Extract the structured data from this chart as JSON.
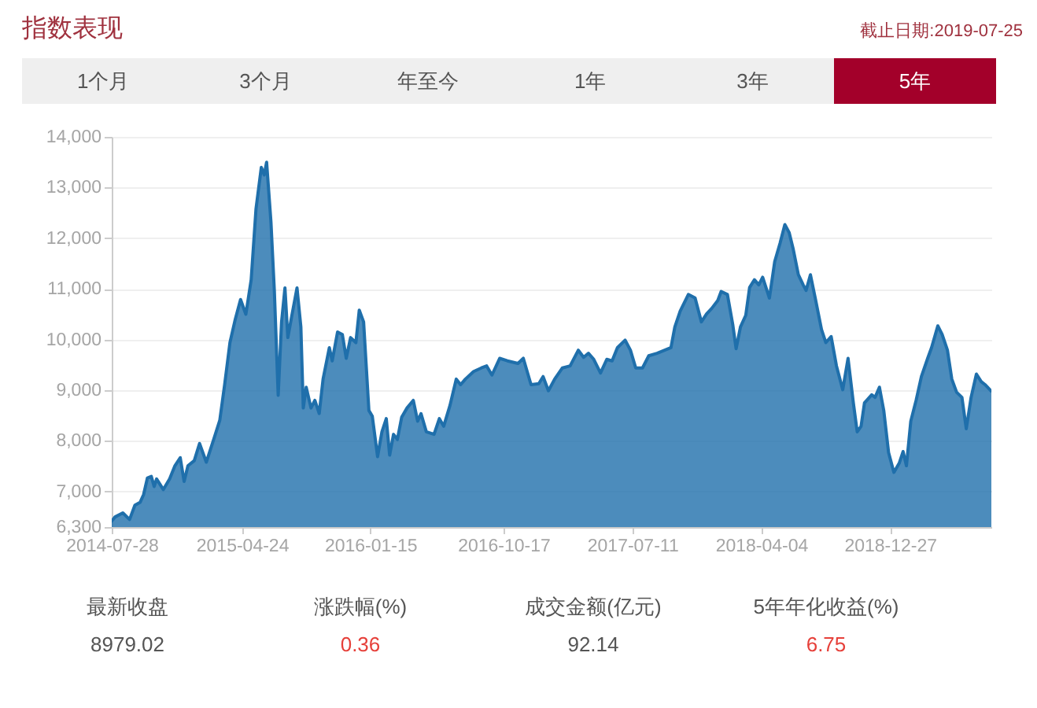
{
  "chart_data": {
    "type": "area",
    "title": "指数表现",
    "subtitle": "截止日期:2019-07-25",
    "annotations": [
      "1个月",
      "3个月",
      "年至今",
      "1年",
      "3年",
      "5年",
      "最新收盘",
      "8979.02",
      "涨跌幅(%)",
      "0.36",
      "成交金额(亿元)",
      "92.14",
      "5年年化收益(%)",
      "6.75"
    ],
    "x": [
      "2014-07-28",
      "2014-08-04",
      "2014-08-20",
      "2014-09-03",
      "2014-09-14",
      "2014-09-25",
      "2014-10-02",
      "2014-10-10",
      "2014-10-18",
      "2014-10-24",
      "2014-10-29",
      "2014-11-12",
      "2014-11-25",
      "2014-12-06",
      "2014-12-17",
      "2014-12-25",
      "2015-01-02",
      "2015-01-15",
      "2015-01-26",
      "2015-02-09",
      "2015-02-26",
      "2015-03-09",
      "2015-03-19",
      "2015-03-30",
      "2015-04-10",
      "2015-04-21",
      "2015-05-02",
      "2015-05-13",
      "2015-05-23",
      "2015-06-03",
      "2015-06-09",
      "2015-06-14",
      "2015-06-23",
      "2015-06-30",
      "2015-07-08",
      "2015-07-15",
      "2015-07-22",
      "2015-07-28",
      "2015-08-05",
      "2015-08-16",
      "2015-08-24",
      "2015-08-29",
      "2015-09-04",
      "2015-09-14",
      "2015-09-22",
      "2015-10-01",
      "2015-10-09",
      "2015-10-22",
      "2015-10-28",
      "2015-11-08",
      "2015-11-18",
      "2015-11-26",
      "2015-12-05",
      "2015-12-16",
      "2015-12-23",
      "2016-01-01",
      "2016-01-12",
      "2016-01-19",
      "2016-01-30",
      "2016-02-08",
      "2016-02-17",
      "2016-02-24",
      "2016-03-03",
      "2016-03-11",
      "2016-03-20",
      "2016-03-31",
      "2016-04-13",
      "2016-04-22",
      "2016-04-29",
      "2016-05-10",
      "2016-05-26",
      "2016-06-06",
      "2016-06-15",
      "2016-06-28",
      "2016-07-11",
      "2016-07-20",
      "2016-07-30",
      "2016-08-16",
      "2016-09-01",
      "2016-09-12",
      "2016-09-23",
      "2016-10-09",
      "2016-10-25",
      "2016-11-16",
      "2016-11-27",
      "2016-12-13",
      "2016-12-29",
      "2017-01-07",
      "2017-01-18",
      "2017-01-31",
      "2017-02-16",
      "2017-03-04",
      "2017-03-21",
      "2017-04-01",
      "2017-04-11",
      "2017-04-22",
      "2017-05-06",
      "2017-05-19",
      "2017-05-30",
      "2017-06-10",
      "2017-06-26",
      "2017-07-07",
      "2017-07-18",
      "2017-08-01",
      "2017-08-14",
      "2017-08-31",
      "2017-09-16",
      "2017-09-29",
      "2017-10-07",
      "2017-10-18",
      "2017-11-04",
      "2017-11-18",
      "2017-12-01",
      "2017-12-12",
      "2017-12-22",
      "2018-01-04",
      "2018-01-11",
      "2018-01-24",
      "2018-02-04",
      "2018-02-11",
      "2018-02-20",
      "2018-03-03",
      "2018-03-11",
      "2018-03-21",
      "2018-03-30",
      "2018-04-07",
      "2018-04-21",
      "2018-05-02",
      "2018-05-13",
      "2018-05-23",
      "2018-06-01",
      "2018-06-09",
      "2018-06-20",
      "2018-06-30",
      "2018-07-06",
      "2018-07-15",
      "2018-07-25",
      "2018-08-07",
      "2018-08-16",
      "2018-08-27",
      "2018-09-07",
      "2018-09-20",
      "2018-10-01",
      "2018-10-12",
      "2018-10-20",
      "2018-10-28",
      "2018-11-04",
      "2018-11-19",
      "2018-11-26",
      "2018-12-05",
      "2018-12-14",
      "2018-12-24",
      "2019-01-04",
      "2019-01-15",
      "2019-01-23",
      "2019-01-30",
      "2019-02-08",
      "2019-02-19",
      "2019-03-02",
      "2019-03-15",
      "2019-03-23",
      "2019-04-05",
      "2019-04-14",
      "2019-04-25",
      "2019-05-04",
      "2019-05-14",
      "2019-05-25",
      "2019-06-03",
      "2019-06-13",
      "2019-06-24",
      "2019-07-04",
      "2019-07-12",
      "2019-07-25"
    ],
    "values": [
      6420,
      6500,
      6580,
      6450,
      6730,
      6790,
      6940,
      7270,
      7300,
      7100,
      7250,
      7040,
      7250,
      7510,
      7670,
      7200,
      7510,
      7610,
      7950,
      7580,
      8080,
      8410,
      9110,
      9940,
      10400,
      10790,
      10500,
      11180,
      12580,
      13400,
      13250,
      13500,
      12320,
      10970,
      8900,
      10350,
      11020,
      10040,
      10460,
      11020,
      10250,
      8650,
      9060,
      8650,
      8800,
      8540,
      9220,
      9840,
      9580,
      10150,
      10100,
      9630,
      10040,
      9940,
      10580,
      10350,
      8600,
      8490,
      7690,
      8180,
      8440,
      7720,
      8130,
      8030,
      8470,
      8650,
      8800,
      8390,
      8540,
      8180,
      8130,
      8440,
      8290,
      8700,
      9220,
      9110,
      9220,
      9370,
      9440,
      9480,
      9300,
      9630,
      9580,
      9530,
      9630,
      9110,
      9130,
      9270,
      8990,
      9220,
      9440,
      9480,
      9790,
      9650,
      9730,
      9610,
      9340,
      9610,
      9580,
      9840,
      9990,
      9790,
      9440,
      9440,
      9680,
      9730,
      9790,
      9840,
      10250,
      10560,
      10890,
      10820,
      10350,
      10510,
      10610,
      10770,
      10950,
      10890,
      10300,
      9820,
      10250,
      10480,
      11030,
      11180,
      11080,
      11230,
      10820,
      11540,
      11900,
      12270,
      12110,
      11800,
      11280,
      11080,
      10970,
      11280,
      10820,
      10200,
      9940,
      10060,
      9480,
      9010,
      9630,
      8750,
      8180,
      8290,
      8750,
      8910,
      8860,
      9060,
      8600,
      7770,
      7380,
      7560,
      7790,
      7510,
      8390,
      8800,
      9270,
      9630,
      9840,
      10270,
      10100,
      9790,
      9220,
      8960,
      8860,
      8240,
      8860,
      9320,
      9170,
      9110,
      8980
    ],
    "color": "#1f6fab",
    "xlim": [
      "2014-07-28",
      "2019-07-25"
    ],
    "xticks": [
      "2014-07-28",
      "2015-04-24",
      "2016-01-15",
      "2016-10-17",
      "2017-07-11",
      "2018-04-04",
      "2018-12-27"
    ],
    "ylim": [
      6300,
      14000
    ],
    "yticks": [
      {
        "value": 6300,
        "label": "6,300"
      },
      {
        "value": 7000,
        "label": "7,000"
      },
      {
        "value": 8000,
        "label": "8,000"
      },
      {
        "value": 9000,
        "label": "9,000"
      },
      {
        "value": 10000,
        "label": "10,000"
      },
      {
        "value": 11000,
        "label": "11,000"
      },
      {
        "value": 12000,
        "label": "12,000"
      },
      {
        "value": 13000,
        "label": "13,000"
      },
      {
        "value": 14000,
        "label": "14,000"
      }
    ],
    "grid": "y"
  }
}
